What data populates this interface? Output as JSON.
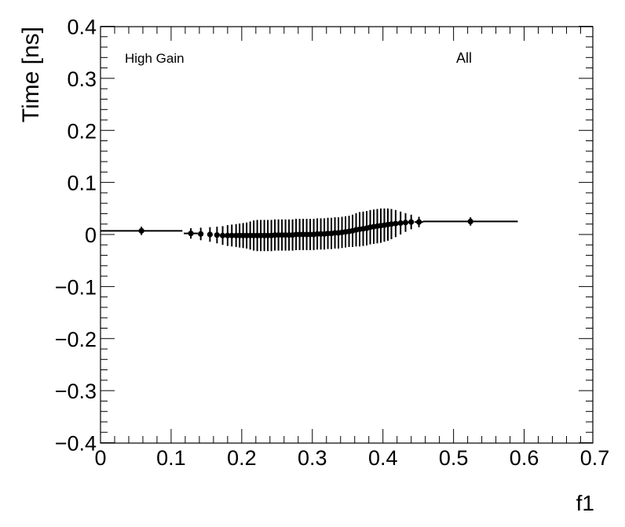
{
  "chart_data": {
    "type": "scatter",
    "title": "",
    "xlabel": "f1",
    "ylabel": "Time [ns]",
    "xlim": [
      0,
      0.73
    ],
    "ylim": [
      -0.4,
      0.4
    ],
    "x_ticks": [
      0,
      0.1,
      0.2,
      0.3,
      0.4,
      0.5,
      0.6,
      0.7
    ],
    "x_tick_labels": [
      "0",
      "0.1",
      "0.2",
      "0.3",
      "0.4",
      "0.5",
      "0.6",
      "0.7"
    ],
    "y_ticks": [
      -0.4,
      -0.3,
      -0.2,
      -0.1,
      0,
      0.1,
      0.2,
      0.3,
      0.4
    ],
    "y_tick_labels": [
      "−0.4",
      "−0.3",
      "−0.2",
      "−0.1",
      "0",
      "0.1",
      "0.2",
      "0.3",
      "0.4"
    ],
    "grid": false,
    "annotations": [
      "High Gain",
      "All"
    ],
    "marker_color": "#000000",
    "series": [
      {
        "points": [
          {
            "x": 0.058,
            "y": 0.007,
            "xerr": 0.058,
            "yerr": 0.008
          },
          {
            "x": 0.128,
            "y": 0.002,
            "xerr": 0.01,
            "yerr": 0.01
          },
          {
            "x": 0.142,
            "y": 0.001,
            "xerr": 0.003,
            "yerr": 0.012
          },
          {
            "x": 0.155,
            "y": 0.0,
            "xerr": 0.003,
            "yerr": 0.014
          },
          {
            "x": 0.165,
            "y": -0.001,
            "xerr": 0.003,
            "yerr": 0.016
          },
          {
            "x": 0.173,
            "y": -0.002,
            "xerr": 0.002,
            "yerr": 0.018
          },
          {
            "x": 0.18,
            "y": -0.002,
            "xerr": 0.002,
            "yerr": 0.02
          },
          {
            "x": 0.186,
            "y": -0.002,
            "xerr": 0.002,
            "yerr": 0.021
          },
          {
            "x": 0.192,
            "y": -0.002,
            "xerr": 0.002,
            "yerr": 0.022
          },
          {
            "x": 0.197,
            "y": -0.002,
            "xerr": 0.002,
            "yerr": 0.023
          },
          {
            "x": 0.202,
            "y": -0.002,
            "xerr": 0.002,
            "yerr": 0.024
          },
          {
            "x": 0.207,
            "y": -0.002,
            "xerr": 0.002,
            "yerr": 0.025
          },
          {
            "x": 0.212,
            "y": -0.002,
            "xerr": 0.002,
            "yerr": 0.027
          },
          {
            "x": 0.217,
            "y": -0.002,
            "xerr": 0.002,
            "yerr": 0.029
          },
          {
            "x": 0.222,
            "y": -0.002,
            "xerr": 0.002,
            "yerr": 0.03
          },
          {
            "x": 0.227,
            "y": -0.002,
            "xerr": 0.002,
            "yerr": 0.03
          },
          {
            "x": 0.232,
            "y": -0.002,
            "xerr": 0.002,
            "yerr": 0.03
          },
          {
            "x": 0.237,
            "y": -0.002,
            "xerr": 0.002,
            "yerr": 0.03
          },
          {
            "x": 0.242,
            "y": -0.002,
            "xerr": 0.002,
            "yerr": 0.03
          },
          {
            "x": 0.247,
            "y": -0.001,
            "xerr": 0.002,
            "yerr": 0.03
          },
          {
            "x": 0.252,
            "y": -0.001,
            "xerr": 0.002,
            "yerr": 0.03
          },
          {
            "x": 0.257,
            "y": -0.001,
            "xerr": 0.002,
            "yerr": 0.03
          },
          {
            "x": 0.262,
            "y": -0.001,
            "xerr": 0.002,
            "yerr": 0.03
          },
          {
            "x": 0.267,
            "y": -0.001,
            "xerr": 0.002,
            "yerr": 0.03
          },
          {
            "x": 0.272,
            "y": -0.001,
            "xerr": 0.002,
            "yerr": 0.03
          },
          {
            "x": 0.277,
            "y": 0.0,
            "xerr": 0.002,
            "yerr": 0.03
          },
          {
            "x": 0.282,
            "y": 0.0,
            "xerr": 0.002,
            "yerr": 0.03
          },
          {
            "x": 0.287,
            "y": 0.0,
            "xerr": 0.002,
            "yerr": 0.03
          },
          {
            "x": 0.292,
            "y": 0.0,
            "xerr": 0.002,
            "yerr": 0.03
          },
          {
            "x": 0.297,
            "y": 0.0,
            "xerr": 0.002,
            "yerr": 0.03
          },
          {
            "x": 0.302,
            "y": 0.0,
            "xerr": 0.002,
            "yerr": 0.03
          },
          {
            "x": 0.307,
            "y": 0.001,
            "xerr": 0.002,
            "yerr": 0.03
          },
          {
            "x": 0.312,
            "y": 0.001,
            "xerr": 0.002,
            "yerr": 0.03
          },
          {
            "x": 0.317,
            "y": 0.001,
            "xerr": 0.002,
            "yerr": 0.03
          },
          {
            "x": 0.322,
            "y": 0.002,
            "xerr": 0.002,
            "yerr": 0.03
          },
          {
            "x": 0.327,
            "y": 0.002,
            "xerr": 0.002,
            "yerr": 0.03
          },
          {
            "x": 0.332,
            "y": 0.003,
            "xerr": 0.002,
            "yerr": 0.03
          },
          {
            "x": 0.337,
            "y": 0.003,
            "xerr": 0.002,
            "yerr": 0.03
          },
          {
            "x": 0.342,
            "y": 0.004,
            "xerr": 0.002,
            "yerr": 0.03
          },
          {
            "x": 0.347,
            "y": 0.005,
            "xerr": 0.002,
            "yerr": 0.03
          },
          {
            "x": 0.352,
            "y": 0.006,
            "xerr": 0.002,
            "yerr": 0.03
          },
          {
            "x": 0.357,
            "y": 0.007,
            "xerr": 0.002,
            "yerr": 0.031
          },
          {
            "x": 0.362,
            "y": 0.009,
            "xerr": 0.002,
            "yerr": 0.032
          },
          {
            "x": 0.367,
            "y": 0.01,
            "xerr": 0.002,
            "yerr": 0.033
          },
          {
            "x": 0.372,
            "y": 0.011,
            "xerr": 0.002,
            "yerr": 0.033
          },
          {
            "x": 0.377,
            "y": 0.012,
            "xerr": 0.002,
            "yerr": 0.033
          },
          {
            "x": 0.382,
            "y": 0.014,
            "xerr": 0.002,
            "yerr": 0.033
          },
          {
            "x": 0.387,
            "y": 0.015,
            "xerr": 0.002,
            "yerr": 0.033
          },
          {
            "x": 0.392,
            "y": 0.016,
            "xerr": 0.002,
            "yerr": 0.033
          },
          {
            "x": 0.397,
            "y": 0.017,
            "xerr": 0.002,
            "yerr": 0.033
          },
          {
            "x": 0.402,
            "y": 0.018,
            "xerr": 0.002,
            "yerr": 0.032
          },
          {
            "x": 0.407,
            "y": 0.019,
            "xerr": 0.002,
            "yerr": 0.031
          },
          {
            "x": 0.412,
            "y": 0.02,
            "xerr": 0.002,
            "yerr": 0.029
          },
          {
            "x": 0.418,
            "y": 0.021,
            "xerr": 0.003,
            "yerr": 0.026
          },
          {
            "x": 0.425,
            "y": 0.022,
            "xerr": 0.003,
            "yerr": 0.022
          },
          {
            "x": 0.432,
            "y": 0.023,
            "xerr": 0.004,
            "yerr": 0.018
          },
          {
            "x": 0.44,
            "y": 0.024,
            "xerr": 0.004,
            "yerr": 0.014
          },
          {
            "x": 0.451,
            "y": 0.024,
            "xerr": 0.006,
            "yerr": 0.01
          },
          {
            "x": 0.524,
            "y": 0.025,
            "xerr": 0.067,
            "yerr": 0.008
          }
        ]
      }
    ]
  }
}
